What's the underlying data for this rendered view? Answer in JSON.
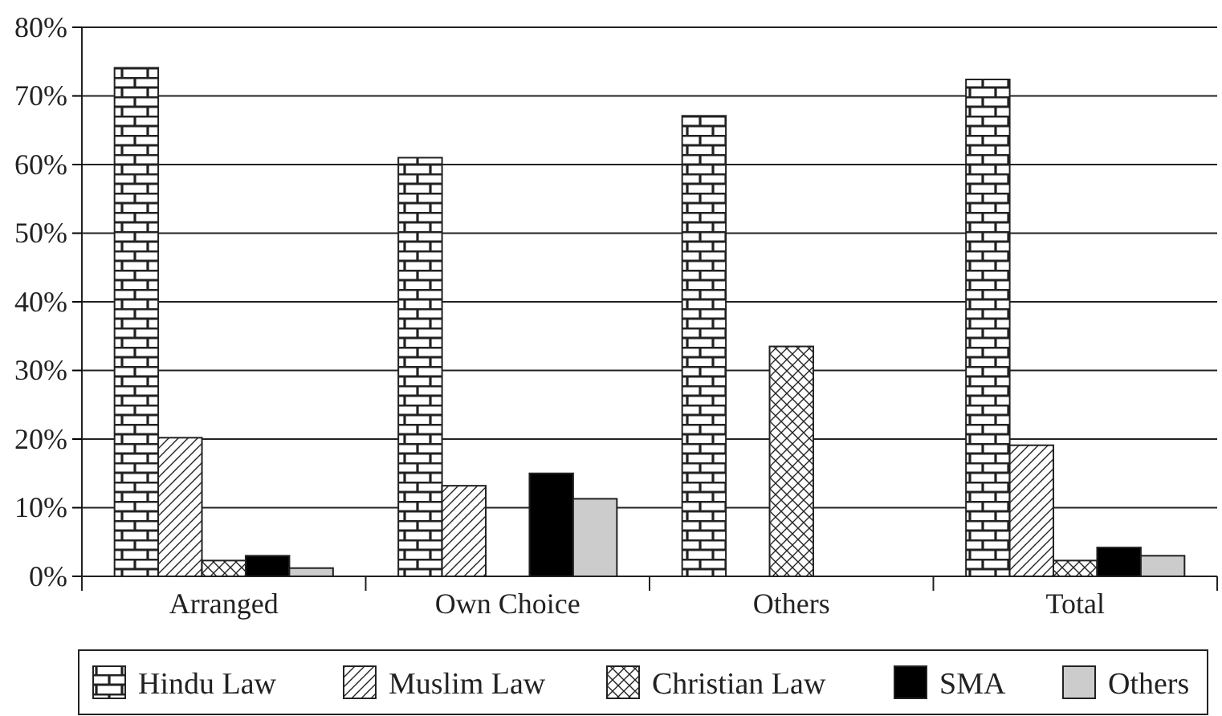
{
  "chart_data": {
    "type": "bar",
    "categories": [
      "Arranged",
      "Own Choice",
      "Others",
      "Total"
    ],
    "series": [
      {
        "name": "Hindu Law",
        "color": "#222222",
        "values": [
          74.1,
          61.0,
          67.1,
          72.4
        ]
      },
      {
        "name": "Muslim Law",
        "color": "#222222",
        "values": [
          20.2,
          13.2,
          null,
          19.1
        ]
      },
      {
        "name": "Christian Law",
        "color": "#222222",
        "values": [
          2.3,
          null,
          33.5,
          2.3
        ]
      },
      {
        "name": "SMA",
        "color": "#000000",
        "values": [
          3.0,
          15.0,
          null,
          4.2
        ]
      },
      {
        "name": "Others",
        "color": "#cccccc",
        "values": [
          1.2,
          11.3,
          null,
          3.0
        ]
      }
    ],
    "ylim": [
      0,
      80
    ],
    "yticks": [
      {
        "value": 0,
        "label": "0%"
      },
      {
        "value": 10,
        "label": "10%"
      },
      {
        "value": 20,
        "label": "20%"
      },
      {
        "value": 30,
        "label": "30%"
      },
      {
        "value": 40,
        "label": "40%"
      },
      {
        "value": 50,
        "label": "50%"
      },
      {
        "value": 60,
        "label": "60%"
      },
      {
        "value": 70,
        "label": "70%"
      },
      {
        "value": 80,
        "label": "80%"
      }
    ],
    "grid": "y",
    "legend": "bottom"
  }
}
